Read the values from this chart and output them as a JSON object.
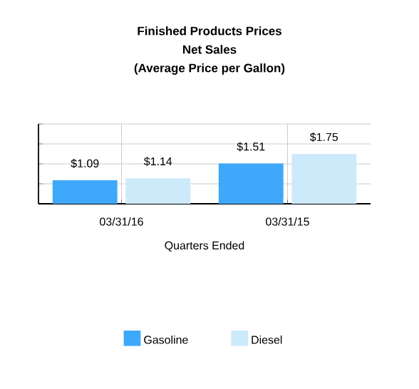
{
  "chart_data": {
    "type": "bar",
    "title": "Finished Products Prices",
    "subtitle": "Net Sales",
    "annotations": [
      "(Average Price per Gallon)"
    ],
    "xlabel": "Quarters Ended",
    "categories": [
      "03/31/16",
      "03/31/15"
    ],
    "series": [
      {
        "name": "Gasoline",
        "color": "#3ea8fb",
        "values": [
          1.09,
          1.51
        ],
        "value_labels": [
          "$1.09",
          "$1.51"
        ]
      },
      {
        "name": "Diesel",
        "color": "#cdeafb",
        "values": [
          1.14,
          1.75
        ],
        "value_labels": [
          "$1.14",
          "$1.75"
        ]
      }
    ],
    "ylim": [
      0.5,
      2.5
    ],
    "yticks": [
      {
        "value": 1,
        "label": null
      },
      {
        "value": 1.5,
        "label": null
      },
      {
        "value": 2,
        "label": null
      },
      {
        "value": 2.5,
        "label": null
      }
    ],
    "grid": true,
    "legend": "bottom",
    "tick_labels": "x"
  }
}
